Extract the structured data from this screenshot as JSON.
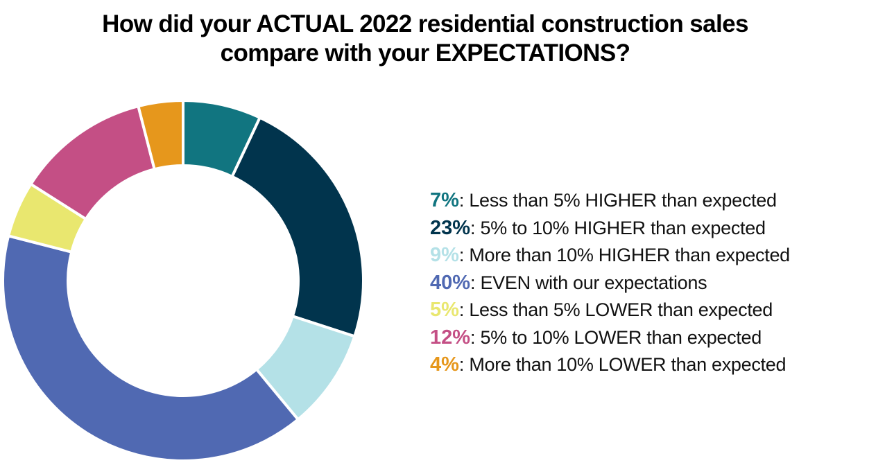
{
  "chart_data": {
    "type": "pie",
    "variant": "donut",
    "title": "How did your ACTUAL 2022 residential construction sales compare with your EXPECTATIONS?",
    "title_lines": [
      "How did your ACTUAL 2022 residential construction sales",
      "compare with your EXPECTATIONS?"
    ],
    "legend_position": "right",
    "start_angle": "12 o'clock, clockwise",
    "slices": [
      {
        "label": "Less than 5% HIGHER than expected",
        "value": 7,
        "pct_label": "7%",
        "color": "#117580"
      },
      {
        "label": "5% to 10% HIGHER than expected",
        "value": 23,
        "pct_label": "23%",
        "color": "#01344d"
      },
      {
        "label": "More than 10% HIGHER than expected",
        "value": 9,
        "pct_label": "9%",
        "color": "#b4e1e7"
      },
      {
        "label": "EVEN with our expectations",
        "value": 40,
        "pct_label": "40%",
        "color": "#5069b2"
      },
      {
        "label": "Less than 5% LOWER than expected",
        "value": 5,
        "pct_label": "5%",
        "color": "#e9e76f"
      },
      {
        "label": "5% to 10% LOWER than expected",
        "value": 12,
        "pct_label": "12%",
        "color": "#c44f85"
      },
      {
        "label": "More than 10% LOWER than expected",
        "value": 4,
        "pct_label": "4%",
        "color": "#e6971c"
      }
    ],
    "legend_separator": ": "
  }
}
